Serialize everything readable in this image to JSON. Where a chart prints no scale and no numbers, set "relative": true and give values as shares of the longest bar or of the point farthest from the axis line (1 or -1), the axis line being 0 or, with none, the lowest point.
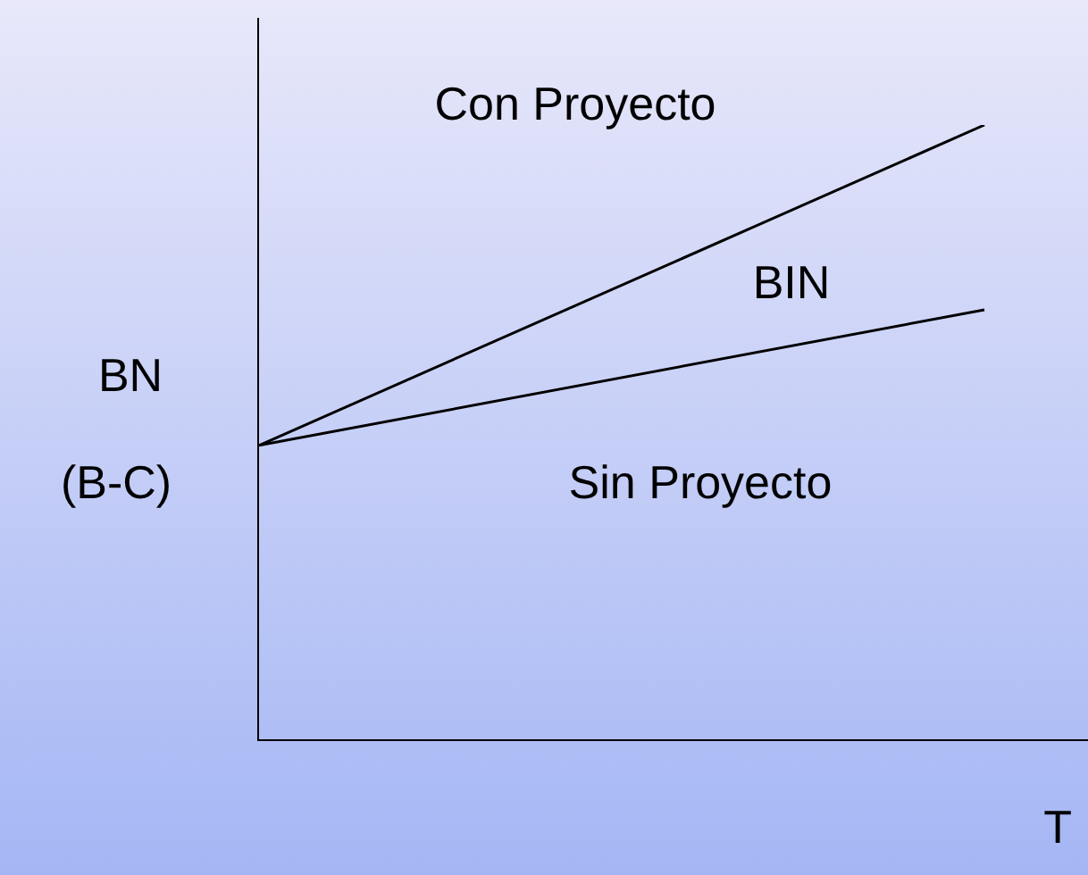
{
  "chart_data": {
    "type": "line",
    "relative": true,
    "xlabel": "T",
    "ylabel": "BN\n(B-C)",
    "categories": [
      null,
      null
    ],
    "series": [
      {
        "color": "#000000",
        "values": [
          0.48,
          1
        ]
      },
      {
        "color": "#000000",
        "values": [
          0.48,
          0.7
        ]
      }
    ],
    "annotations": [
      "Con Proyecto",
      "BIN",
      "Sin Proyecto"
    ],
    "legend": false,
    "marker": "none",
    "line_style": "solid"
  }
}
